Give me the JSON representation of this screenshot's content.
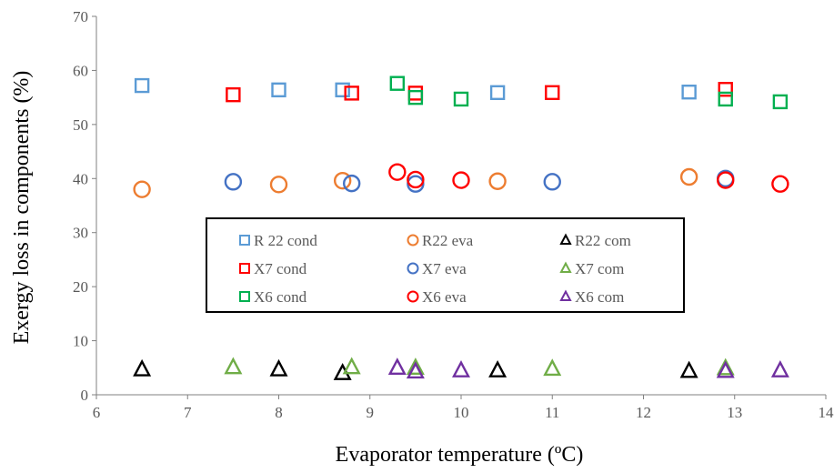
{
  "chart_data": {
    "type": "scatter",
    "title": "",
    "xlabel": "Evaporator temperature (ºC)",
    "ylabel": "Exergy loss in components (%)",
    "xlim": [
      6,
      14
    ],
    "ylim": [
      0,
      70
    ],
    "xticks": [
      "6",
      "7",
      "8",
      "9",
      "10",
      "11",
      "12",
      "13",
      "14"
    ],
    "yticks": [
      "0",
      "10",
      "20",
      "30",
      "40",
      "50",
      "60",
      "70"
    ],
    "grid": false,
    "legend_position": "center",
    "series": [
      {
        "name": "R 22 cond",
        "marker": "square",
        "color": "#5B9BD5",
        "points": [
          [
            6.5,
            57.2
          ],
          [
            8.0,
            56.4
          ],
          [
            8.7,
            56.4
          ],
          [
            10.4,
            55.9
          ],
          [
            12.5,
            56.0
          ]
        ]
      },
      {
        "name": "R22 eva",
        "marker": "circle",
        "color": "#ED7D31",
        "points": [
          [
            6.5,
            38.0
          ],
          [
            8.0,
            38.9
          ],
          [
            8.7,
            39.6
          ],
          [
            10.4,
            39.5
          ],
          [
            12.5,
            40.3
          ]
        ]
      },
      {
        "name": "R22 com",
        "marker": "triangle",
        "color": "#000000",
        "points": [
          [
            6.5,
            4.7
          ],
          [
            8.0,
            4.7
          ],
          [
            8.7,
            4.0
          ],
          [
            10.4,
            4.5
          ],
          [
            12.5,
            4.4
          ]
        ]
      },
      {
        "name": "X7 cond",
        "marker": "square",
        "color": "#FF0000",
        "points": [
          [
            7.5,
            55.5
          ],
          [
            8.8,
            55.8
          ],
          [
            9.5,
            55.8
          ],
          [
            11.0,
            55.9
          ],
          [
            12.9,
            56.5
          ]
        ]
      },
      {
        "name": "X7 eva",
        "marker": "circle",
        "color": "#4472C4",
        "points": [
          [
            7.5,
            39.4
          ],
          [
            8.8,
            39.1
          ],
          [
            9.5,
            39.0
          ],
          [
            11.0,
            39.4
          ],
          [
            12.9,
            40.0
          ]
        ]
      },
      {
        "name": "X7 com",
        "marker": "triangle",
        "color": "#70AD47",
        "points": [
          [
            7.5,
            5.1
          ],
          [
            8.8,
            5.1
          ],
          [
            9.5,
            5.0
          ],
          [
            11.0,
            4.8
          ],
          [
            12.9,
            4.9
          ]
        ]
      },
      {
        "name": "X6 cond",
        "marker": "square",
        "color": "#00B050",
        "points": [
          [
            9.3,
            57.6
          ],
          [
            9.5,
            55.0
          ],
          [
            10.0,
            54.7
          ],
          [
            12.9,
            54.7
          ],
          [
            13.5,
            54.2
          ]
        ]
      },
      {
        "name": "X6 eva",
        "marker": "circle",
        "color": "#FF0000",
        "points": [
          [
            9.3,
            41.2
          ],
          [
            9.5,
            39.8
          ],
          [
            10.0,
            39.7
          ],
          [
            12.9,
            39.7
          ],
          [
            13.5,
            39.0
          ]
        ]
      },
      {
        "name": "X6 com",
        "marker": "triangle",
        "color": "#7030A0",
        "points": [
          [
            9.3,
            5.0
          ],
          [
            9.5,
            4.3
          ],
          [
            10.0,
            4.5
          ],
          [
            12.9,
            4.4
          ],
          [
            13.5,
            4.5
          ]
        ]
      }
    ]
  }
}
